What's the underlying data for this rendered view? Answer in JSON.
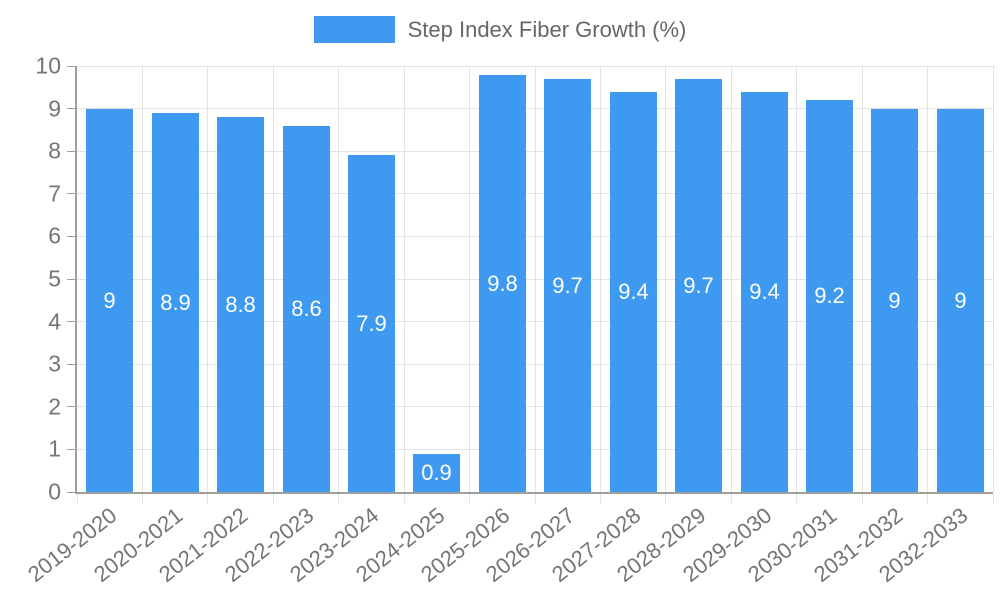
{
  "chart_data": {
    "type": "bar",
    "title": "Step Index Fiber Growth (%)",
    "legend": {
      "label": "Step Index Fiber Growth (%)",
      "position": "top"
    },
    "categories": [
      "2019-2020",
      "2020-2021",
      "2021-2022",
      "2022-2023",
      "2023-2024",
      "2024-2025",
      "2025-2026",
      "2026-2027",
      "2027-2028",
      "2028-2029",
      "2029-2030",
      "2030-2031",
      "2031-2032",
      "2032-2033"
    ],
    "values": [
      9,
      8.9,
      8.8,
      8.6,
      7.9,
      0.9,
      9.8,
      9.7,
      9.4,
      9.7,
      9.4,
      9.2,
      9,
      9
    ],
    "bar_labels": [
      "9",
      "8.9",
      "8.8",
      "8.6",
      "7.9",
      "0.9",
      "9.8",
      "9.7",
      "9.4",
      "9.7",
      "9.4",
      "9.2",
      "9",
      "9"
    ],
    "xlabel": "",
    "ylabel": "",
    "ylim": [
      0,
      10
    ],
    "yticks": [
      0,
      1,
      2,
      3,
      4,
      5,
      6,
      7,
      8,
      9,
      10
    ],
    "grid": true,
    "colors": {
      "bar": "#3d9af0",
      "grid": "#e3e3e3",
      "axis": "#9e9e9e",
      "tick_text": "#757575",
      "bar_label": "#ffffff",
      "legend_text": "#666666"
    }
  }
}
